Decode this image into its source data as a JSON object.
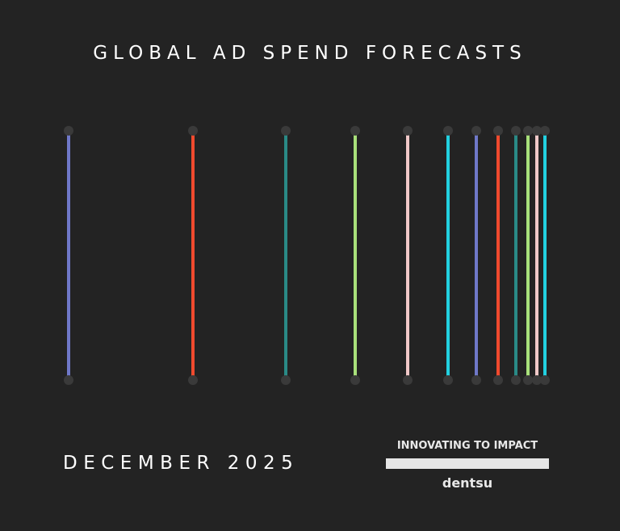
{
  "header": {
    "title": "GLOBAL AD SPEND FORECASTS"
  },
  "footer": {
    "date": "DECEMBER 2025",
    "tagline": "INNOVATING TO IMPACT",
    "brand": "dentsu"
  }
}
